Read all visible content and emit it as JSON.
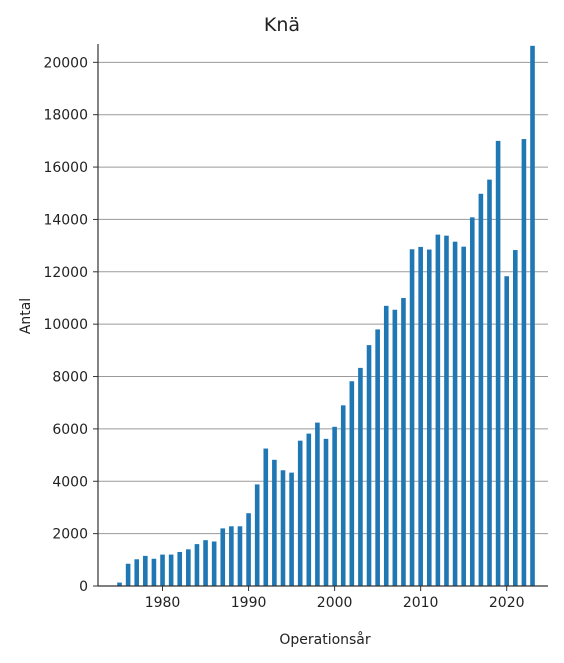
{
  "chart_data": {
    "type": "bar",
    "title": "Knä",
    "xlabel": "Operationsår",
    "ylabel": "Antal",
    "bar_color": "#1f77b4",
    "grid": true,
    "x": [
      1975,
      1976,
      1977,
      1978,
      1979,
      1980,
      1981,
      1982,
      1983,
      1984,
      1985,
      1986,
      1987,
      1988,
      1989,
      1990,
      1991,
      1992,
      1993,
      1994,
      1995,
      1996,
      1997,
      1998,
      1999,
      2000,
      2001,
      2002,
      2003,
      2004,
      2005,
      2006,
      2007,
      2008,
      2009,
      2010,
      2011,
      2012,
      2013,
      2014,
      2015,
      2016,
      2017,
      2018,
      2019,
      2020,
      2021,
      2022,
      2023
    ],
    "values": [
      130,
      850,
      1020,
      1150,
      1040,
      1200,
      1200,
      1300,
      1400,
      1600,
      1750,
      1700,
      2200,
      2280,
      2280,
      2780,
      3880,
      5250,
      4820,
      4420,
      4330,
      5550,
      5820,
      6240,
      5620,
      6080,
      6900,
      7820,
      8330,
      9200,
      9800,
      10700,
      10550,
      11000,
      12860,
      12950,
      12850,
      13420,
      13380,
      13150,
      12960,
      14080,
      14980,
      15520,
      17000,
      11830,
      12830,
      17070,
      20630
    ],
    "ylim": [
      0,
      20700
    ],
    "yticks": [
      0,
      2000,
      4000,
      6000,
      8000,
      10000,
      12000,
      14000,
      16000,
      18000,
      20000
    ],
    "xticks": [
      1980,
      1990,
      2000,
      2010,
      2020
    ]
  }
}
